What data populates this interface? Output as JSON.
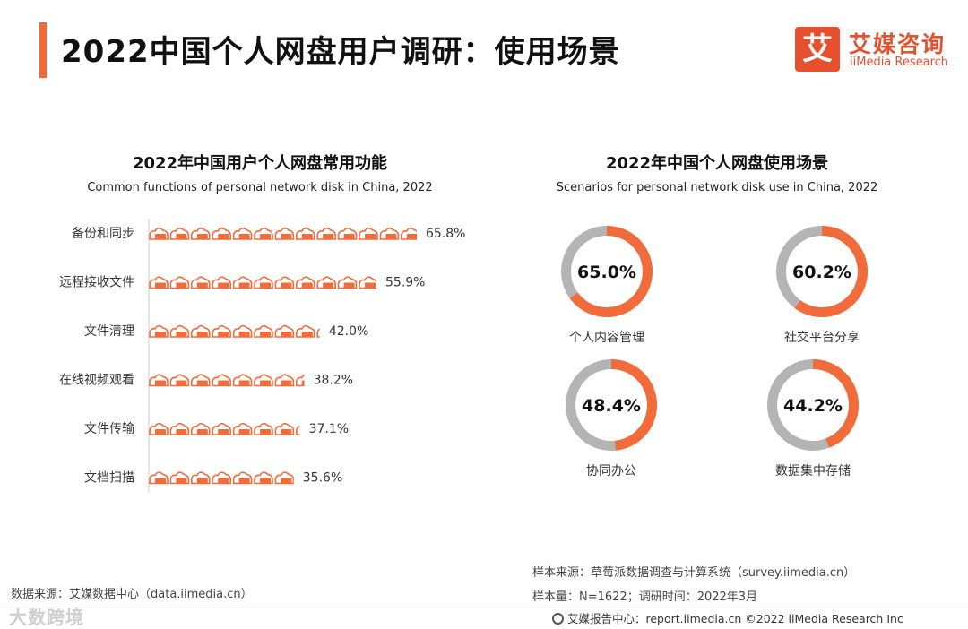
{
  "header": {
    "title": "2022中国个人网盘用户调研：使用场景",
    "logo_mark": "艾",
    "logo_cn": "艾媒咨询",
    "logo_en": "iiMedia Research"
  },
  "colors": {
    "accent": "#f26b3a",
    "ring_gray": "#b4b4b4"
  },
  "chart_data": [
    {
      "type": "bar",
      "title": "2022年中国用户个人网盘常用功能",
      "subtitle": "Common functions of personal network disk in China, 2022",
      "categories": [
        "备份和同步",
        "远程接收文件",
        "文件清理",
        "在线视频观看",
        "文件传输",
        "文档扫描"
      ],
      "values": [
        65.8,
        55.9,
        42.0,
        38.2,
        37.1,
        35.6
      ],
      "labels": [
        "65.8%",
        "55.9%",
        "42.0%",
        "38.2%",
        "37.1%",
        "35.6%"
      ],
      "unit": "%",
      "mark_icon": "cloud-icon"
    },
    {
      "type": "pie",
      "title": "2022年中国个人网盘使用场景",
      "subtitle": "Scenarios for personal network disk use in China, 2022",
      "categories": [
        "个人内容管理",
        "社交平台分享",
        "协同办公",
        "数据集中存储"
      ],
      "values": [
        65.0,
        60.2,
        48.4,
        44.2
      ],
      "labels": [
        "65.0%",
        "60.2%",
        "48.4%",
        "44.2%"
      ],
      "unit": "%"
    }
  ],
  "footer": {
    "source": "数据来源：艾媒数据中心（data.iimedia.cn）",
    "sample_source": "样本来源：草莓派数据调查与计算系统（survey.iimedia.cn）",
    "sample_size": "样本量：N=1622；调研时间：2022年3月",
    "report": "艾媒报告中心：report.iimedia.cn   ©2022 iiMedia Research Inc",
    "watermark": "大数跨境"
  }
}
